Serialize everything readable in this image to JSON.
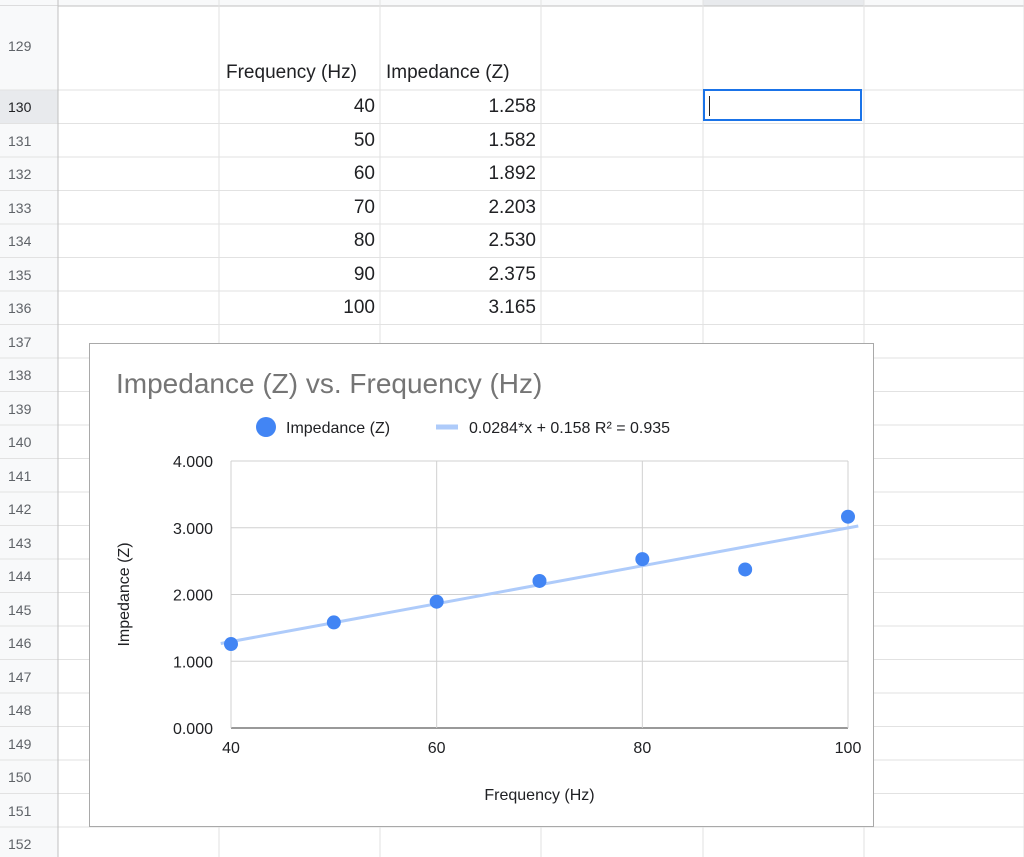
{
  "spreadsheet": {
    "row_numbers": [
      "129",
      "130",
      "131",
      "132",
      "133",
      "134",
      "135",
      "136",
      "137",
      "138",
      "139",
      "140",
      "141",
      "142",
      "143",
      "144",
      "145",
      "146",
      "147",
      "148",
      "149",
      "150",
      "151",
      "152"
    ],
    "selected_row": "130",
    "table": {
      "headers": [
        "Frequency (Hz)",
        "Impedance (Z)"
      ],
      "rows": [
        [
          "40",
          "1.258"
        ],
        [
          "50",
          "1.582"
        ],
        [
          "60",
          "1.892"
        ],
        [
          "70",
          "2.203"
        ],
        [
          "80",
          "2.530"
        ],
        [
          "90",
          "2.375"
        ],
        [
          "100",
          "3.165"
        ]
      ]
    }
  },
  "colors": {
    "point": "#4285f4",
    "trendline": "#aecbfa",
    "selection": "#1a73e8"
  },
  "chart_data": {
    "type": "scatter",
    "title": "Impedance (Z) vs. Frequency (Hz)",
    "xlabel": "Frequency (Hz)",
    "ylabel": "Impedance (Z)",
    "xlim": [
      40,
      100
    ],
    "ylim": [
      0,
      4
    ],
    "x_ticks": [
      "40",
      "60",
      "80",
      "100"
    ],
    "y_ticks": [
      "0.000",
      "1.000",
      "2.000",
      "3.000",
      "4.000"
    ],
    "grid": true,
    "legend_position": "top",
    "series": [
      {
        "name": "Impedance (Z)",
        "x": [
          40,
          50,
          60,
          70,
          80,
          90,
          100
        ],
        "y": [
          1.258,
          1.582,
          1.892,
          2.203,
          2.53,
          2.375,
          3.165
        ]
      }
    ],
    "trendline": {
      "label": "0.0284*x + 0.158 R² = 0.935",
      "slope": 0.0284,
      "intercept": 0.158
    }
  }
}
